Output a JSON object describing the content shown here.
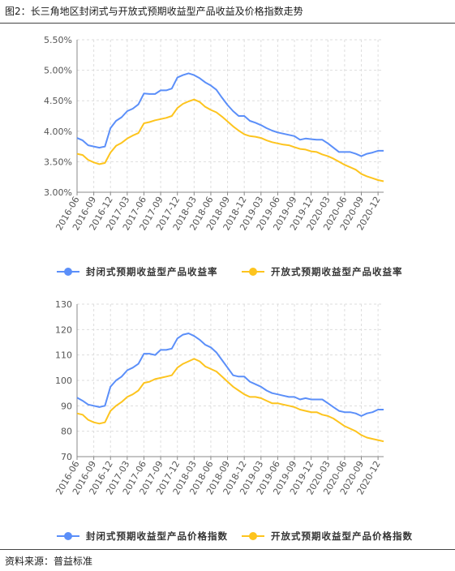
{
  "figure": {
    "title": "图2：长三角地区封闭式与开放式预期收益型产品收益及价格指数走势",
    "source": "资料来源：普益标准"
  },
  "colors": {
    "closed": "#5b8ff9",
    "open": "#fdc41e",
    "grid": "#dddddd",
    "axis": "#888888"
  },
  "chart_data": [
    {
      "type": "line",
      "x": [
        "2016-06",
        "2016-07",
        "2016-08",
        "2016-09",
        "2016-10",
        "2016-11",
        "2016-12",
        "2017-01",
        "2017-02",
        "2017-03",
        "2017-04",
        "2017-05",
        "2017-06",
        "2017-07",
        "2017-08",
        "2017-09",
        "2017-10",
        "2017-11",
        "2017-12",
        "2018-01",
        "2018-02",
        "2018-03",
        "2018-04",
        "2018-05",
        "2018-06",
        "2018-07",
        "2018-08",
        "2018-09",
        "2018-10",
        "2018-11",
        "2018-12",
        "2019-01",
        "2019-02",
        "2019-03",
        "2019-04",
        "2019-05",
        "2019-06",
        "2019-07",
        "2019-08",
        "2019-09",
        "2019-10",
        "2019-11",
        "2019-12",
        "2020-01",
        "2020-02",
        "2020-03",
        "2020-04",
        "2020-05",
        "2020-06",
        "2020-07",
        "2020-08",
        "2020-09",
        "2020-10",
        "2020-11",
        "2020-12",
        "2021-01"
      ],
      "tick_labels": [
        "2016-06",
        "2016-09",
        "2016-12",
        "2017-03",
        "2017-06",
        "2017-09",
        "2017-12",
        "2018-03",
        "2018-06",
        "2018-09",
        "2018-12",
        "2019-03",
        "2019-06",
        "2019-09",
        "2019-12",
        "2020-03",
        "2020-06",
        "2020-09",
        "2020-12"
      ],
      "y_ticks": [
        "3.00%",
        "3.50%",
        "4.00%",
        "4.50%",
        "5.00%",
        "5.50%"
      ],
      "ylim": [
        3.0,
        5.5
      ],
      "grid": true,
      "legend_position": "bottom",
      "series": [
        {
          "name": "封闭式预期收益型产品收益率",
          "values": [
            3.89,
            3.85,
            3.77,
            3.75,
            3.73,
            3.75,
            4.05,
            4.17,
            4.23,
            4.33,
            4.37,
            4.44,
            4.62,
            4.61,
            4.61,
            4.67,
            4.67,
            4.7,
            4.88,
            4.92,
            4.95,
            4.92,
            4.87,
            4.8,
            4.75,
            4.68,
            4.55,
            4.43,
            4.33,
            4.25,
            4.25,
            4.17,
            4.14,
            4.1,
            4.05,
            4.01,
            3.98,
            3.96,
            3.94,
            3.92,
            3.86,
            3.88,
            3.87,
            3.86,
            3.86,
            3.8,
            3.73,
            3.66,
            3.66,
            3.66,
            3.63,
            3.59,
            3.63,
            3.65,
            3.68,
            3.68
          ]
        },
        {
          "name": "开放式预期收益型产品收益率",
          "values": [
            3.63,
            3.61,
            3.53,
            3.49,
            3.46,
            3.48,
            3.65,
            3.76,
            3.81,
            3.88,
            3.93,
            3.97,
            4.13,
            4.15,
            4.18,
            4.2,
            4.22,
            4.25,
            4.38,
            4.45,
            4.49,
            4.52,
            4.48,
            4.4,
            4.35,
            4.31,
            4.24,
            4.16,
            4.08,
            4.01,
            3.95,
            3.92,
            3.91,
            3.89,
            3.85,
            3.82,
            3.8,
            3.78,
            3.77,
            3.74,
            3.71,
            3.7,
            3.67,
            3.66,
            3.62,
            3.59,
            3.55,
            3.5,
            3.45,
            3.41,
            3.37,
            3.3,
            3.26,
            3.23,
            3.2,
            3.18
          ]
        }
      ]
    },
    {
      "type": "line",
      "x": [
        "2016-06",
        "2016-07",
        "2016-08",
        "2016-09",
        "2016-10",
        "2016-11",
        "2016-12",
        "2017-01",
        "2017-02",
        "2017-03",
        "2017-04",
        "2017-05",
        "2017-06",
        "2017-07",
        "2017-08",
        "2017-09",
        "2017-10",
        "2017-11",
        "2017-12",
        "2018-01",
        "2018-02",
        "2018-03",
        "2018-04",
        "2018-05",
        "2018-06",
        "2018-07",
        "2018-08",
        "2018-09",
        "2018-10",
        "2018-11",
        "2018-12",
        "2019-01",
        "2019-02",
        "2019-03",
        "2019-04",
        "2019-05",
        "2019-06",
        "2019-07",
        "2019-08",
        "2019-09",
        "2019-10",
        "2019-11",
        "2019-12",
        "2020-01",
        "2020-02",
        "2020-03",
        "2020-04",
        "2020-05",
        "2020-06",
        "2020-07",
        "2020-08",
        "2020-09",
        "2020-10",
        "2020-11",
        "2020-12",
        "2021-01"
      ],
      "tick_labels": [
        "2016-06",
        "2016-09",
        "2016-12",
        "2017-03",
        "2017-06",
        "2017-09",
        "2017-12",
        "2018-03",
        "2018-06",
        "2018-09",
        "2018-12",
        "2019-03",
        "2019-06",
        "2019-09",
        "2019-12",
        "2020-03",
        "2020-06",
        "2020-09",
        "2020-12"
      ],
      "y_ticks": [
        "70",
        "80",
        "90",
        "100",
        "110",
        "120",
        "130"
      ],
      "ylim": [
        70,
        130
      ],
      "grid": true,
      "legend_position": "bottom",
      "series": [
        {
          "name": "封闭式预期收益型产品价格指数",
          "values": [
            93.2,
            92.0,
            90.5,
            90.0,
            89.5,
            90.0,
            97.5,
            100.0,
            101.5,
            104.0,
            105.0,
            106.5,
            110.5,
            110.5,
            110.0,
            112.0,
            112.0,
            112.5,
            116.5,
            118.0,
            118.5,
            117.5,
            116.0,
            114.0,
            113.0,
            111.0,
            108.0,
            105.0,
            102.0,
            101.5,
            101.5,
            99.5,
            98.5,
            97.5,
            96.0,
            95.0,
            94.5,
            94.0,
            93.5,
            93.5,
            92.5,
            93.0,
            92.5,
            92.5,
            92.5,
            91.0,
            89.5,
            88.0,
            87.5,
            87.5,
            87.0,
            86.0,
            87.0,
            87.5,
            88.5,
            88.5
          ]
        },
        {
          "name": "开放式预期收益型产品价格指数",
          "values": [
            87.0,
            86.5,
            84.5,
            83.5,
            83.0,
            83.5,
            88.0,
            90.0,
            91.5,
            93.5,
            94.5,
            96.0,
            99.0,
            99.5,
            100.5,
            101.0,
            101.5,
            102.0,
            105.0,
            106.5,
            107.5,
            108.5,
            107.5,
            105.5,
            104.5,
            103.5,
            101.5,
            99.5,
            97.5,
            96.0,
            94.5,
            93.5,
            93.5,
            93.0,
            92.0,
            91.0,
            91.0,
            90.5,
            90.0,
            89.5,
            88.5,
            88.0,
            87.5,
            87.5,
            86.5,
            86.0,
            85.0,
            83.5,
            82.0,
            81.0,
            80.0,
            78.5,
            77.5,
            77.0,
            76.5,
            76.0
          ]
        }
      ]
    }
  ]
}
